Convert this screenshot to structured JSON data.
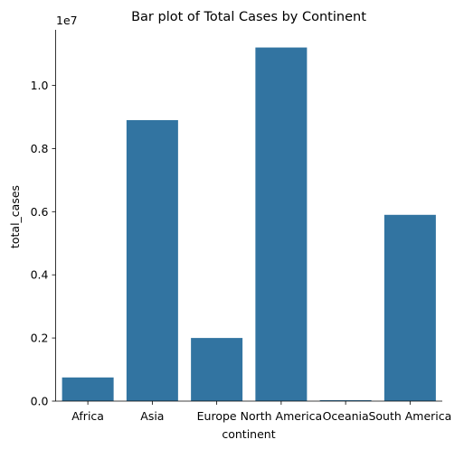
{
  "chart_data": {
    "type": "bar",
    "title": "Bar plot of Total Cases by Continent",
    "xlabel": "continent",
    "ylabel": "total_cases",
    "y_offset_text": "1e7",
    "categories": [
      "Africa",
      "Asia",
      "Europe",
      "North America",
      "Oceania",
      "South America"
    ],
    "values": [
      750000,
      8900000,
      2000000,
      11200000,
      30000,
      5900000
    ],
    "ylim": [
      0,
      11760000
    ],
    "yticks": [
      0,
      2000000,
      4000000,
      6000000,
      8000000,
      10000000
    ],
    "ytick_labels": [
      "0.0",
      "0.2",
      "0.4",
      "0.6",
      "0.8",
      "1.0"
    ],
    "grid": false,
    "colors": {
      "bar": "#3274a1",
      "axis": "#000000"
    }
  }
}
